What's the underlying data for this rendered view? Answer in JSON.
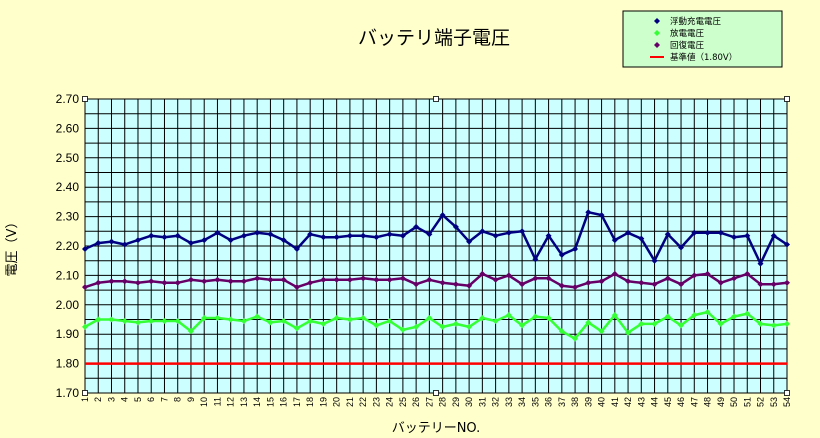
{
  "chart_data": {
    "type": "line",
    "title": "バッテリ端子電圧",
    "xlabel": "バッテリーNO.",
    "ylabel": "電圧（V）",
    "ylim": [
      1.7,
      2.7
    ],
    "y_ticks": [
      "1.70",
      "1.80",
      "1.90",
      "2.00",
      "2.10",
      "2.20",
      "2.30",
      "2.40",
      "2.50",
      "2.60",
      "2.70"
    ],
    "x": [
      1,
      2,
      3,
      4,
      5,
      6,
      7,
      8,
      9,
      10,
      11,
      12,
      13,
      14,
      15,
      16,
      17,
      18,
      19,
      20,
      21,
      22,
      23,
      24,
      25,
      26,
      27,
      28,
      29,
      30,
      31,
      32,
      33,
      34,
      35,
      36,
      37,
      38,
      39,
      40,
      41,
      42,
      43,
      44,
      45,
      46,
      47,
      48,
      49,
      50,
      51,
      52,
      53,
      54
    ],
    "grid": true,
    "legend_position": "top-right",
    "plot_background": "#ccffff",
    "page_background": "#ffffcc",
    "legend_background": "#ccffcc",
    "series": [
      {
        "name": "浮動充電電圧",
        "color": "#000080",
        "marker": "diamond",
        "values": [
          2.19,
          2.21,
          2.215,
          2.205,
          2.22,
          2.235,
          2.23,
          2.235,
          2.21,
          2.22,
          2.245,
          2.22,
          2.235,
          2.245,
          2.24,
          2.22,
          2.19,
          2.24,
          2.23,
          2.23,
          2.235,
          2.235,
          2.23,
          2.24,
          2.235,
          2.265,
          2.24,
          2.305,
          2.265,
          2.215,
          2.25,
          2.235,
          2.245,
          2.25,
          2.155,
          2.235,
          2.17,
          2.19,
          2.315,
          2.305,
          2.22,
          2.245,
          2.225,
          2.15,
          2.24,
          2.195,
          2.245,
          2.245,
          2.245,
          2.23,
          2.235,
          2.14,
          2.235,
          2.205
        ]
      },
      {
        "name": "放電電圧",
        "color": "#33ff33",
        "marker": "diamond",
        "values": [
          1.925,
          1.95,
          1.95,
          1.945,
          1.94,
          1.945,
          1.945,
          1.945,
          1.91,
          1.955,
          1.955,
          1.95,
          1.945,
          1.96,
          1.94,
          1.945,
          1.92,
          1.945,
          1.935,
          1.955,
          1.95,
          1.955,
          1.93,
          1.945,
          1.915,
          1.925,
          1.955,
          1.925,
          1.935,
          1.925,
          1.955,
          1.945,
          1.965,
          1.93,
          1.96,
          1.955,
          1.91,
          1.885,
          1.94,
          1.91,
          1.965,
          1.905,
          1.935,
          1.935,
          1.96,
          1.93,
          1.965,
          1.975,
          1.935,
          1.96,
          1.97,
          1.935,
          1.93,
          1.935
        ]
      },
      {
        "name": "回復電圧",
        "color": "#660066",
        "marker": "diamond",
        "values": [
          2.06,
          2.075,
          2.08,
          2.08,
          2.075,
          2.08,
          2.075,
          2.075,
          2.085,
          2.08,
          2.085,
          2.08,
          2.08,
          2.09,
          2.085,
          2.085,
          2.06,
          2.075,
          2.085,
          2.085,
          2.085,
          2.09,
          2.085,
          2.085,
          2.09,
          2.07,
          2.085,
          2.075,
          2.07,
          2.065,
          2.105,
          2.085,
          2.1,
          2.07,
          2.09,
          2.09,
          2.065,
          2.06,
          2.075,
          2.08,
          2.105,
          2.08,
          2.075,
          2.07,
          2.09,
          2.07,
          2.1,
          2.105,
          2.075,
          2.09,
          2.105,
          2.07,
          2.07,
          2.075
        ]
      },
      {
        "name": "基準値（1.80V）",
        "color": "#ff0000",
        "marker": "none",
        "values": [
          1.8,
          1.8,
          1.8,
          1.8,
          1.8,
          1.8,
          1.8,
          1.8,
          1.8,
          1.8,
          1.8,
          1.8,
          1.8,
          1.8,
          1.8,
          1.8,
          1.8,
          1.8,
          1.8,
          1.8,
          1.8,
          1.8,
          1.8,
          1.8,
          1.8,
          1.8,
          1.8,
          1.8,
          1.8,
          1.8,
          1.8,
          1.8,
          1.8,
          1.8,
          1.8,
          1.8,
          1.8,
          1.8,
          1.8,
          1.8,
          1.8,
          1.8,
          1.8,
          1.8,
          1.8,
          1.8,
          1.8,
          1.8,
          1.8,
          1.8,
          1.8,
          1.8,
          1.8,
          1.8
        ]
      }
    ]
  }
}
